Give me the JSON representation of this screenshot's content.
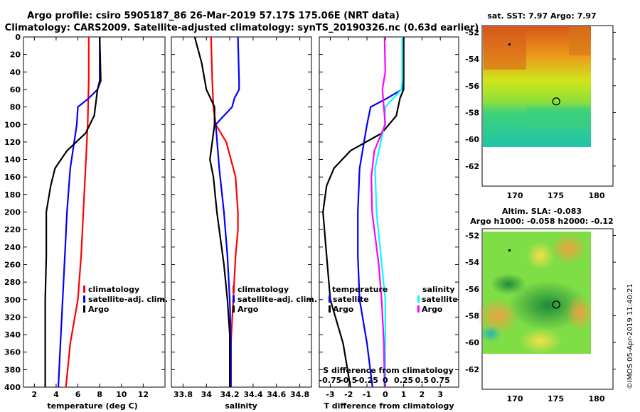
{
  "title": "Argo profile: csiro 5905187_86 26-Mar-2019 57.17S 175.06E (NRT data)",
  "subtitle": "Climatology: CARS2009. Satellite-adjusted climatology: synTS_20190326.nc (0.63d earlier)",
  "credit": "©IMOS 05-Apr-2019 11:40:21",
  "colors": {
    "climatology": "#ff0000",
    "satellite": "#0000ff",
    "argo": "#000000",
    "s_sat": "#00ffff",
    "s_argo": "#ff00ff"
  },
  "chart_data": [
    {
      "type": "line",
      "id": "temperature",
      "xlabel": "temperature (deg C)",
      "xlim": [
        1,
        14
      ],
      "ylim": [
        400,
        0
      ],
      "xticks": [
        "2",
        "4",
        "6",
        "8",
        "10",
        "12"
      ],
      "yticks": [
        "0",
        "20",
        "40",
        "60",
        "80",
        "100",
        "120",
        "140",
        "160",
        "180",
        "200",
        "220",
        "240",
        "260",
        "280",
        "300",
        "320",
        "340",
        "360",
        "380",
        "400"
      ],
      "legend": [
        "climatology",
        "satellite-adj. clim.",
        "Argo"
      ],
      "series": [
        {
          "name": "climatology",
          "depth": [
            0,
            50,
            100,
            150,
            200,
            250,
            300,
            350,
            400
          ],
          "values": [
            7.0,
            7.0,
            6.9,
            6.7,
            6.5,
            6.3,
            6.0,
            5.3,
            4.9
          ]
        },
        {
          "name": "satellite-adj. clim.",
          "depth": [
            0,
            50,
            60,
            70,
            80,
            100,
            150,
            200,
            250,
            300,
            350,
            400
          ],
          "values": [
            8.0,
            8.0,
            7.8,
            7.0,
            6.0,
            5.9,
            5.3,
            5.0,
            4.8,
            4.6,
            4.4,
            4.2
          ]
        },
        {
          "name": "Argo",
          "depth": [
            0,
            50,
            60,
            70,
            90,
            110,
            130,
            150,
            170,
            200,
            250,
            300,
            350,
            400
          ],
          "values": [
            8.0,
            8.1,
            7.8,
            7.7,
            7.5,
            6.7,
            5.0,
            3.9,
            3.5,
            3.1,
            3.1,
            3.0,
            3.0,
            3.0
          ]
        }
      ]
    },
    {
      "type": "line",
      "id": "salinity",
      "xlabel": "salinity",
      "xlim": [
        33.7,
        34.9
      ],
      "ylim": [
        400,
        0
      ],
      "xticks": [
        "33.8",
        "34",
        "34.2",
        "34.4",
        "34.6",
        "34.8"
      ],
      "legend": [
        "climatology",
        "satellite-adj. clim.",
        "Argo"
      ],
      "series": [
        {
          "name": "climatology",
          "depth": [
            0,
            50,
            80,
            100,
            120,
            160,
            200,
            220,
            250,
            300,
            350,
            400
          ],
          "values": [
            34.04,
            34.05,
            34.06,
            34.08,
            34.17,
            34.25,
            34.27,
            34.27,
            34.25,
            34.23,
            34.21,
            34.21
          ]
        },
        {
          "name": "satellite-adj. clim.",
          "depth": [
            0,
            50,
            60,
            70,
            80,
            100,
            150,
            200,
            250,
            300,
            350,
            400
          ],
          "values": [
            34.27,
            34.28,
            34.28,
            34.24,
            34.22,
            34.08,
            34.11,
            34.15,
            34.18,
            34.2,
            34.21,
            34.21
          ]
        },
        {
          "name": "Argo",
          "depth": [
            0,
            30,
            60,
            80,
            100,
            140,
            160,
            200,
            260,
            300,
            340,
            400
          ],
          "values": [
            33.9,
            33.96,
            34.0,
            34.07,
            34.07,
            34.03,
            34.06,
            34.09,
            34.15,
            34.18,
            34.2,
            34.2
          ]
        }
      ]
    },
    {
      "type": "line",
      "id": "difference",
      "xlabel": "T difference from climatology",
      "xlabel_top": "S difference from climatology",
      "xlim": [
        -3.6,
        4.0
      ],
      "xlim_s": [
        -0.9,
        1.0
      ],
      "ylim": [
        400,
        0
      ],
      "xticks": [
        "-3",
        "-2",
        "-1",
        "0",
        "1",
        "2",
        "3"
      ],
      "xticks_s": [
        "-0.75",
        "-0.5",
        "-0.25",
        "0",
        "0.25",
        "0.5",
        "0.75"
      ],
      "legend_titles": [
        "temperature",
        "salinity"
      ],
      "legend": [
        "satellite",
        "Argo"
      ],
      "series": [
        {
          "name": "T satellite",
          "depth": [
            0,
            50,
            60,
            70,
            80,
            100,
            150,
            200,
            250,
            300,
            350,
            400
          ],
          "values": [
            1.0,
            1.0,
            0.9,
            0.1,
            -0.8,
            -1.0,
            -1.4,
            -1.5,
            -1.5,
            -1.4,
            -1.0,
            -0.7
          ]
        },
        {
          "name": "T Argo",
          "depth": [
            0,
            50,
            60,
            70,
            90,
            110,
            130,
            150,
            170,
            200,
            250,
            300,
            350,
            400
          ],
          "values": [
            1.0,
            1.0,
            1.0,
            0.8,
            0.6,
            -0.2,
            -1.9,
            -2.8,
            -3.2,
            -3.4,
            -3.2,
            -3.0,
            -2.3,
            -1.9
          ]
        },
        {
          "name": "S satellite",
          "depth": [
            0,
            50,
            60,
            80,
            100,
            150,
            200,
            300,
            400
          ],
          "values": [
            0.23,
            0.23,
            0.22,
            0.0,
            -0.01,
            -0.14,
            -0.12,
            0.0,
            0.0
          ]
        },
        {
          "name": "S Argo",
          "depth": [
            0,
            40,
            60,
            80,
            100,
            130,
            160,
            200,
            260,
            300,
            350,
            400
          ],
          "values": [
            -0.01,
            0.0,
            -0.04,
            -0.02,
            0.0,
            -0.15,
            -0.19,
            -0.18,
            -0.09,
            -0.05,
            -0.02,
            -0.01
          ]
        }
      ]
    },
    {
      "type": "heatmap",
      "id": "sst_map",
      "title": "sat. SST: 7.97 Argo: 7.97",
      "xlim": [
        166,
        182
      ],
      "ylim": [
        -63.5,
        -51.5
      ],
      "xticks": [
        "170",
        "175",
        "180"
      ],
      "yticks": [
        "-52",
        "-54",
        "-56",
        "-58",
        "-60",
        "-62"
      ],
      "marker": {
        "lon": 175.06,
        "lat": -57.17
      }
    },
    {
      "type": "heatmap",
      "id": "sla_map",
      "title": "Altim. SLA: -0.083",
      "subtitle": "Argo h1000: -0.058 h2000: -0.12",
      "xlim": [
        166,
        182
      ],
      "ylim": [
        -63.5,
        -51.5
      ],
      "xticks": [
        "170",
        "175",
        "180"
      ],
      "yticks": [
        "-52",
        "-54",
        "-56",
        "-58",
        "-60",
        "-62"
      ],
      "marker": {
        "lon": 175.06,
        "lat": -57.17
      }
    }
  ]
}
